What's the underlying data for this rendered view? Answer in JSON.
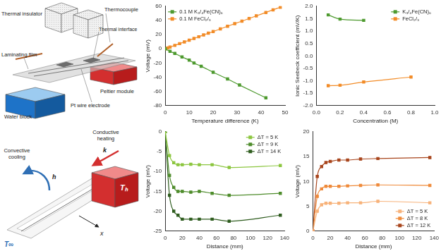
{
  "diagram_setup": {
    "thermal_insulator": "Thermal insulator",
    "thermocouple": "Thermocouple",
    "thermal_interface": "Thermal interface",
    "laminating_film": "Laminating film",
    "peltier_module": "Peltier module",
    "water_block": "Water block",
    "pt_wire_electrode": "Pt wire electrode"
  },
  "diagram_model": {
    "convective_cooling": "Convective cooling",
    "conductive_heating": "Conductive heating",
    "h": "h",
    "k": "k",
    "hot_temperature": "Tₕ",
    "ambient_temperature": "T∞",
    "x": "x"
  },
  "chart_data": [
    {
      "type": "line",
      "x_label": "Temperature difference (K)",
      "y_label": "Voltage (mV)",
      "xlim": [
        0,
        50
      ],
      "xticks": [
        0,
        10,
        20,
        30,
        40,
        50
      ],
      "ylim": [
        -80,
        60
      ],
      "yticks": [
        -80,
        -60,
        -40,
        -20,
        0,
        20,
        40,
        60
      ],
      "grid": false,
      "legend": "upper left",
      "series": [
        {
          "name": "0.1 M K₃/₄Fe(CN)₆",
          "color": "#4e9a2f",
          "marker": "square",
          "line_style": "solid",
          "x": [
            0,
            2,
            4,
            7,
            10,
            12,
            15,
            20,
            26,
            31,
            42
          ],
          "values": [
            0,
            -3.5,
            -6.5,
            -11.5,
            -16,
            -20,
            -24.5,
            -33,
            -42.5,
            -51,
            -69
          ]
        },
        {
          "name": "0.1 M FeCl₂/₃",
          "color": "#f28c28",
          "marker": "square",
          "line_style": "solid",
          "x": [
            0,
            1,
            2,
            4,
            6,
            8,
            10,
            12,
            14,
            16,
            18,
            20,
            23,
            26,
            29,
            32,
            35,
            38,
            42,
            45,
            48
          ],
          "values": [
            0,
            1.2,
            2.4,
            4.8,
            7.3,
            9.7,
            12.2,
            14.6,
            17,
            19.5,
            22,
            24.4,
            28,
            31.7,
            35.4,
            39,
            42.7,
            46.4,
            51.2,
            54.9,
            58.6
          ]
        }
      ]
    },
    {
      "type": "line",
      "x_label": "Concentration (M)",
      "y_label": "Ionic Seebeck coefficient (mV/K)",
      "xlim": [
        0,
        1
      ],
      "xticks": [
        {
          "value": 0,
          "label": "0.0"
        },
        0.2,
        0.4,
        0.6,
        0.8,
        {
          "value": 1,
          "label": "1.0"
        }
      ],
      "ylim": [
        -2,
        2
      ],
      "yticks": [
        {
          "value": -2,
          "label": "-2.0"
        },
        -1.5,
        {
          "value": -1,
          "label": "-1.0"
        },
        -0.5,
        {
          "value": 0,
          "label": "0.0"
        },
        0.5,
        {
          "value": 1,
          "label": "1.0"
        },
        1.5,
        {
          "value": 2,
          "label": "2.0"
        }
      ],
      "grid": false,
      "legend": "upper right",
      "series": [
        {
          "name": "K₃/₄Fe(CN)₆",
          "color": "#4e9a2f",
          "marker": "square",
          "line_style": "solid",
          "x": [
            0.1,
            0.2,
            0.4
          ],
          "values": [
            1.65,
            1.48,
            1.43
          ]
        },
        {
          "name": "FeCl₂/₃",
          "color": "#f28c28",
          "marker": "square",
          "line_style": "solid",
          "x": [
            0.1,
            0.2,
            0.4,
            0.8
          ],
          "values": [
            -1.2,
            -1.18,
            -1.05,
            -0.85
          ]
        }
      ]
    },
    {
      "type": "line",
      "x_label": "Distance (mm)",
      "y_label": "Voltage (mV)",
      "xlim": [
        0,
        140
      ],
      "xticks": [
        0,
        20,
        40,
        60,
        80,
        100,
        120,
        140
      ],
      "ylim": [
        -25,
        0
      ],
      "yticks": [
        -25,
        -20,
        -15,
        -10,
        -5,
        0
      ],
      "grid": false,
      "legend": "upper right",
      "series": [
        {
          "name": "ΔT = 5 K",
          "color": "#8cc63f",
          "marker": "square",
          "line_style": "solid",
          "x": [
            0,
            5,
            10,
            15,
            20,
            30,
            40,
            55,
            75,
            135
          ],
          "values": [
            0,
            -6,
            -7.8,
            -8.3,
            -8.3,
            -8.2,
            -8.3,
            -8.3,
            -9,
            -8.5
          ]
        },
        {
          "name": "ΔT = 9 K",
          "color": "#4e8c2b",
          "marker": "square",
          "line_style": "solid",
          "x": [
            0,
            5,
            10,
            15,
            20,
            30,
            40,
            55,
            75,
            135
          ],
          "values": [
            0,
            -11,
            -14,
            -15,
            -15,
            -15.2,
            -15,
            -15.5,
            -16,
            -15.5
          ]
        },
        {
          "name": "ΔT = 14 K",
          "color": "#2e5c1e",
          "marker": "square",
          "line_style": "solid",
          "x": [
            0,
            5,
            10,
            15,
            20,
            30,
            40,
            55,
            75,
            135
          ],
          "values": [
            0,
            -16,
            -20,
            -21,
            -22,
            -22,
            -22,
            -22,
            -22.5,
            -21
          ]
        }
      ]
    },
    {
      "type": "line",
      "x_label": "Distance (mm)",
      "y_label": "Voltage (mV)",
      "xlim": [
        0,
        140
      ],
      "xticks": [
        0,
        20,
        40,
        60,
        80,
        100,
        120,
        140
      ],
      "ylim": [
        0,
        20
      ],
      "yticks": [
        0,
        5,
        10,
        15,
        20
      ],
      "grid": false,
      "legend": "lower right",
      "series": [
        {
          "name": "ΔT = 5 K",
          "color": "#f7b27a",
          "marker": "square",
          "line_style": "solid",
          "x": [
            0,
            5,
            10,
            15,
            20,
            30,
            40,
            55,
            75,
            135
          ],
          "values": [
            0,
            4,
            5.3,
            5.6,
            5.6,
            5.6,
            5.7,
            5.7,
            6,
            5.7
          ]
        },
        {
          "name": "ΔT = 8 K",
          "color": "#ef8a3a",
          "marker": "square",
          "line_style": "solid",
          "x": [
            0,
            5,
            10,
            15,
            20,
            30,
            40,
            55,
            75,
            135
          ],
          "values": [
            0,
            7,
            8.5,
            9,
            9,
            9,
            9.1,
            9.2,
            9.3,
            9.2
          ]
        },
        {
          "name": "ΔT = 12 K",
          "color": "#a8451c",
          "marker": "square",
          "line_style": "solid",
          "x": [
            0,
            5,
            10,
            15,
            20,
            30,
            40,
            55,
            75,
            135
          ],
          "values": [
            0,
            11,
            13,
            13.8,
            14,
            14.3,
            14.3,
            14.5,
            14.6,
            14.8
          ]
        }
      ]
    }
  ]
}
